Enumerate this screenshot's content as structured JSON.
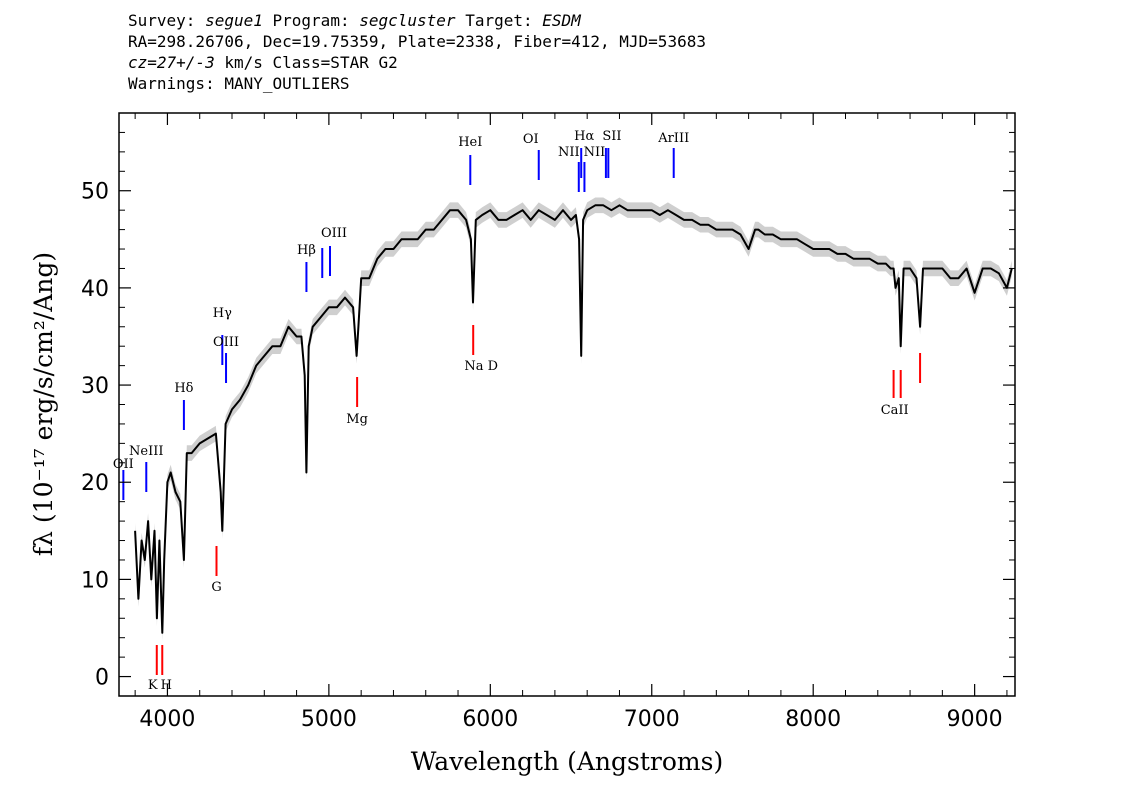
{
  "header": {
    "survey_label": "Survey:",
    "survey": "segue1",
    "program_label": "Program:",
    "program": "segcluster",
    "target_label": "Target:",
    "target": "ESDM",
    "coords": "RA=298.26706, Dec=19.75359, Plate=2338, Fiber=412, MJD=53683",
    "cz": "cz=27+/-3",
    "cz_rest": "km/s Class=STAR G2",
    "warnings": "Warnings: MANY_OUTLIERS"
  },
  "chart_data": {
    "type": "line",
    "xlabel": "Wavelength (Angstroms)",
    "ylabel": "fλ (10⁻¹⁷ erg/s/cm²/Ang)",
    "xlim": [
      3700,
      9250
    ],
    "ylim": [
      -2,
      58
    ],
    "xticks": [
      4000,
      5000,
      6000,
      7000,
      8000,
      9000
    ],
    "yticks": [
      0,
      10,
      20,
      30,
      40,
      50
    ],
    "series": [
      {
        "color": "#000000",
        "error_color": "#bbbbbb",
        "x": [
          3800,
          3820,
          3840,
          3860,
          3880,
          3900,
          3920,
          3935,
          3950,
          3968,
          3980,
          4000,
          4020,
          4050,
          4080,
          4102,
          4120,
          4150,
          4200,
          4250,
          4300,
          4330,
          4340,
          4360,
          4400,
          4450,
          4500,
          4550,
          4600,
          4650,
          4700,
          4750,
          4800,
          4830,
          4850,
          4861,
          4875,
          4900,
          4950,
          5000,
          5050,
          5100,
          5150,
          5172,
          5183,
          5200,
          5250,
          5300,
          5350,
          5400,
          5450,
          5500,
          5550,
          5600,
          5650,
          5700,
          5750,
          5800,
          5850,
          5880,
          5893,
          5910,
          5950,
          6000,
          6050,
          6100,
          6150,
          6200,
          6250,
          6300,
          6350,
          6400,
          6450,
          6500,
          6530,
          6550,
          6563,
          6575,
          6600,
          6650,
          6700,
          6750,
          6800,
          6850,
          6900,
          6950,
          7000,
          7050,
          7100,
          7150,
          7200,
          7250,
          7300,
          7350,
          7400,
          7450,
          7500,
          7550,
          7600,
          7640,
          7660,
          7700,
          7750,
          7800,
          7850,
          7900,
          7950,
          8000,
          8050,
          8100,
          8150,
          8200,
          8250,
          8300,
          8350,
          8400,
          8450,
          8480,
          8498,
          8510,
          8530,
          8542,
          8560,
          8600,
          8640,
          8662,
          8680,
          8720,
          8760,
          8800,
          8850,
          8900,
          8950,
          9000,
          9050,
          9100,
          9150,
          9200,
          9230
        ],
        "y": [
          15,
          8,
          14,
          12,
          16,
          10,
          15,
          6,
          14,
          4.5,
          12,
          20,
          21,
          19,
          18,
          12,
          23,
          23,
          24,
          24.5,
          25,
          19,
          15,
          26,
          27.5,
          28.5,
          30,
          32,
          33,
          34,
          34,
          36,
          35,
          35,
          31,
          21,
          34,
          36,
          37,
          38,
          38,
          39,
          38,
          33,
          36,
          41,
          41,
          43,
          44,
          44,
          45,
          45,
          45,
          46,
          46,
          47,
          48,
          48,
          47,
          45,
          38.5,
          47,
          47.5,
          48,
          47,
          47,
          47.5,
          48,
          47,
          48,
          47.5,
          47,
          48,
          47,
          47.5,
          45,
          33,
          47,
          48,
          48.5,
          48.5,
          48,
          48.5,
          48,
          48,
          48,
          48,
          47.5,
          48,
          47.5,
          47,
          47,
          46.5,
          46.5,
          46,
          46,
          46,
          45.5,
          44,
          46,
          46,
          45.5,
          45.5,
          45,
          45,
          45,
          44.5,
          44,
          44,
          44,
          43.5,
          43.5,
          43,
          43,
          43,
          42.5,
          42.5,
          42,
          42,
          40,
          41,
          34,
          42,
          42,
          41,
          36,
          42,
          42,
          42,
          42,
          41,
          41,
          42,
          39.5,
          42,
          42,
          41.5,
          40,
          42
        ]
      }
    ],
    "line_labels": [
      {
        "name": "OII",
        "x": 3727,
        "color": "#0000ff",
        "pos": "low"
      },
      {
        "name": "NeIII",
        "x": 3869,
        "color": "#0000ff",
        "pos": "high"
      },
      {
        "name": "Hδ",
        "x": 4102,
        "color": "#0000ff",
        "pos": "high"
      },
      {
        "name": "Hγ",
        "x": 4340,
        "color": "#0000ff",
        "pos": "high"
      },
      {
        "name": "OIII",
        "x": 4363,
        "color": "#0000ff",
        "pos": "high"
      },
      {
        "name": "Hβ",
        "x": 4861,
        "color": "#0000ff",
        "pos": "high"
      },
      {
        "name": "OIII",
        "x": 4959,
        "color": "#0000ff",
        "pos": "high"
      },
      {
        "name": "OIII",
        "x": 5007,
        "color": "#0000ff",
        "pos": "high"
      },
      {
        "name": "HeI",
        "x": 5876,
        "color": "#0000ff",
        "pos": "high"
      },
      {
        "name": "OI",
        "x": 6300,
        "color": "#0000ff",
        "pos": "high"
      },
      {
        "name": "NII",
        "x": 6548,
        "color": "#0000ff",
        "pos": "high"
      },
      {
        "name": "Hα",
        "x": 6563,
        "color": "#0000ff",
        "pos": "high"
      },
      {
        "name": "NII",
        "x": 6583,
        "color": "#0000ff",
        "pos": "high"
      },
      {
        "name": "SII",
        "x": 6716,
        "color": "#0000ff",
        "pos": "high"
      },
      {
        "name": "SII",
        "x": 6731,
        "color": "#0000ff",
        "pos": "high"
      },
      {
        "name": "ArIII",
        "x": 7136,
        "color": "#0000ff",
        "pos": "high"
      },
      {
        "name": "K",
        "x": 3934,
        "color": "#ff0000",
        "pos": "low"
      },
      {
        "name": "H",
        "x": 3968,
        "color": "#ff0000",
        "pos": "low"
      },
      {
        "name": "G",
        "x": 4304,
        "color": "#ff0000",
        "pos": "low"
      },
      {
        "name": "Mg",
        "x": 5175,
        "color": "#ff0000",
        "pos": "low"
      },
      {
        "name": "Na D",
        "x": 5894,
        "color": "#ff0000",
        "pos": "low"
      },
      {
        "name": "CaII",
        "x": 8498,
        "color": "#ff0000",
        "pos": "low"
      },
      {
        "name": "CaII",
        "x": 8542,
        "color": "#ff0000",
        "pos": "low"
      },
      {
        "name": "CaII",
        "x": 8662,
        "color": "#ff0000",
        "pos": "low"
      }
    ]
  }
}
